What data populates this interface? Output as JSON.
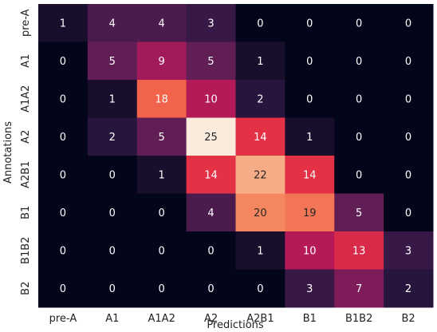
{
  "chart_data": {
    "type": "heatmap",
    "title": "",
    "xlabel": "Predictions",
    "ylabel": "Annotations",
    "x_categories": [
      "pre-A",
      "A1",
      "A1A2",
      "A2",
      "A2B1",
      "B1",
      "B1B2",
      "B2"
    ],
    "y_categories": [
      "pre-A",
      "A1",
      "A1A2",
      "A2",
      "A2B1",
      "B1",
      "B1B2",
      "B2"
    ],
    "values": [
      [
        1,
        4,
        4,
        3,
        0,
        0,
        0,
        0
      ],
      [
        0,
        5,
        9,
        5,
        1,
        0,
        0,
        0
      ],
      [
        0,
        1,
        18,
        10,
        2,
        0,
        0,
        0
      ],
      [
        0,
        2,
        5,
        25,
        14,
        1,
        0,
        0
      ],
      [
        0,
        0,
        1,
        14,
        22,
        14,
        0,
        0
      ],
      [
        0,
        0,
        0,
        4,
        20,
        19,
        5,
        0
      ],
      [
        0,
        0,
        0,
        0,
        1,
        10,
        13,
        3
      ],
      [
        0,
        0,
        0,
        0,
        0,
        3,
        7,
        2
      ]
    ],
    "value_range": [
      0,
      25
    ],
    "colormap": "rocket",
    "grid": false,
    "colorbar": false
  }
}
